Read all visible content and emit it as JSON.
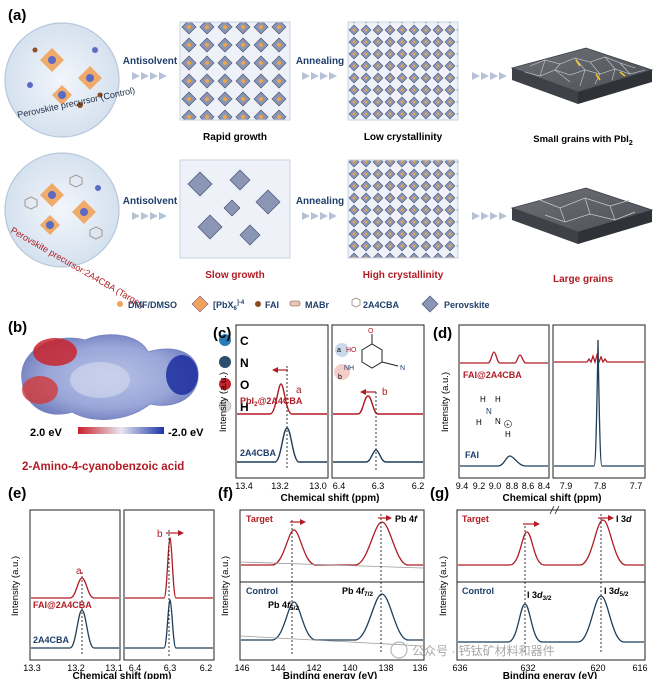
{
  "panel_a": {
    "label": "(a)",
    "row1": {
      "circle_caption": "Perovskite precursor (Control)",
      "arrow1": "Antisolvent",
      "stage1": "Rapid growth",
      "arrow2": "Annealing",
      "stage2": "Low crystallinity",
      "stage3_text": "Small grains with PbI",
      "stage3_sub": "2"
    },
    "row2": {
      "circle_caption": "Perovskite precursor:2A4CBA (Target)",
      "arrow1": "Antisolvent",
      "stage1": "Slow growth",
      "arrow2": "Annealing",
      "stage2": "High crystallinity",
      "stage3": "Large grains"
    },
    "legend": {
      "l1": "DMF/DMSO",
      "l2": "[PbX",
      "l2_sub": "6",
      "l2_sup": "]-4",
      "l3": "FAI",
      "l4": "MABr",
      "l5": "2A4CBA",
      "l6": "Perovskite"
    }
  },
  "panel_b": {
    "label": "(b)",
    "atoms": [
      "C",
      "N",
      "O",
      "H"
    ],
    "atom_colors": [
      "#2a7bb5",
      "#2c4d6e",
      "#c0262c",
      "#d9d9d9"
    ],
    "scale_left": "2.0 eV",
    "scale_right": "-2.0 eV",
    "molecule_name": "2-Amino-4-cyanobenzoic acid"
  },
  "panel_c": {
    "label": "(c)",
    "ylabel": "Intensity (a.u.)",
    "xlabel": "Chemical shift (ppm)",
    "left_ticks": [
      "13.4",
      "13.2",
      "13.0"
    ],
    "right_ticks": [
      "6.4",
      "6.3",
      "6.2"
    ],
    "trace_top": "PbI",
    "trace_top_sub": "2",
    "trace_top_rest": "@2A4CBA",
    "trace_bottom": "2A4CBA",
    "peak_a": "a",
    "peak_b": "b",
    "struct_oh": "HO",
    "struct_o": "O",
    "struct_nh2": "NH",
    "struct_n": "N",
    "struct_a": "a",
    "struct_b": "b"
  },
  "panel_d": {
    "label": "(d)",
    "ylabel": "Intensity (a.u.)",
    "xlabel": "Chemical shift (ppm)",
    "left_ticks": [
      "9.4",
      "9.2",
      "9.0",
      "8.8",
      "8.6",
      "8.4"
    ],
    "right_ticks": [
      "7.9",
      "7.8",
      "7.7"
    ],
    "trace_top": "FAI@2A4CBA",
    "trace_bottom": "FAI"
  },
  "panel_e": {
    "label": "(e)",
    "ylabel": "Intensity (a.u.)",
    "xlabel": "Chemical shift (ppm)",
    "left_ticks": [
      "13.3",
      "13.2",
      "13.1"
    ],
    "right_ticks": [
      "6.4",
      "6.3",
      "6.2"
    ],
    "trace_top": "FAI@2A4CBA",
    "trace_bottom": "2A4CBA",
    "peak_a": "a",
    "peak_b": "b"
  },
  "panel_f": {
    "label": "(f)",
    "ylabel": "Intensity (a.u.)",
    "xlabel": "Binding energy (eV)",
    "ticks": [
      "146",
      "144",
      "142",
      "140",
      "138",
      "136"
    ],
    "target": "Target",
    "control": "Control",
    "pb4f_top": "Pb 4",
    "pb4f_top_it": "f",
    "pb52": "Pb 4",
    "pb52_it": "f",
    "pb52_sub": "5/2",
    "pb72": "Pb 4",
    "pb72_it": "f",
    "pb72_sub": "7/2"
  },
  "panel_g": {
    "label": "(g)",
    "ylabel": "Intensity (a.u.)",
    "xlabel": "Binding energy (eV)",
    "ticks": [
      "636",
      "632",
      "620",
      "616"
    ],
    "target": "Target",
    "control": "Control",
    "i3d_top": "I 3",
    "i3d_top_it": "d",
    "i32": "I 3",
    "i32_it": "d",
    "i32_sub": "3/2",
    "i52": "I 3",
    "i52_it": "d",
    "i52_sub": "5/2"
  },
  "watermark": "公众号 · 钙钛矿材料和器件"
}
